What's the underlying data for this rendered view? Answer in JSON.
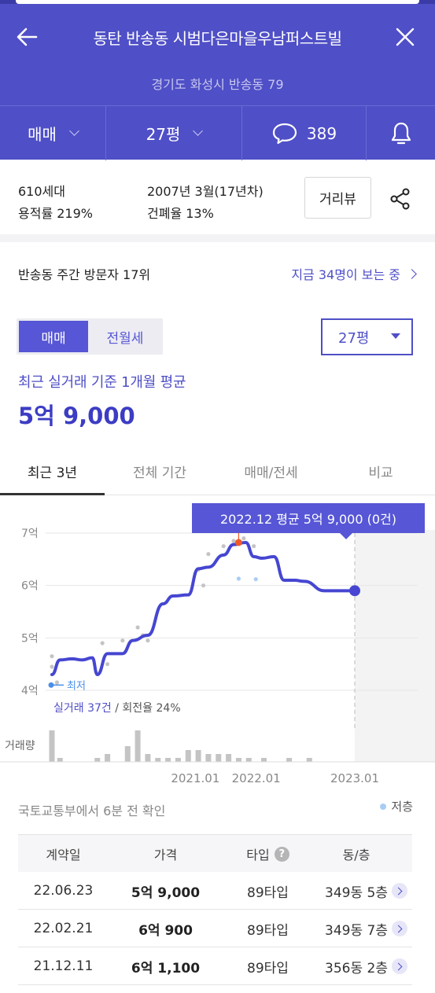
{
  "header": {
    "title": "동탄 반송동 시범다은마을우남퍼스트빌",
    "address": "경기도 화성시 반송동 79",
    "trade_type": "매매",
    "size": "27평",
    "comment_count": "389",
    "icons": [
      "back-arrow-icon",
      "close-icon",
      "chevron-down-icon",
      "speech-bubble-icon",
      "bell-icon"
    ]
  },
  "info": {
    "households": "610세대",
    "floor_area_ratio": "용적률 219%",
    "built": "2007년 3월(17년차)",
    "coverage_ratio": "건폐율 13%",
    "street_view_label": "거리뷰",
    "share_icon": "share-icon"
  },
  "visitors": {
    "rank_text": "반송동 주간 방문자 17위",
    "watching_text": "지금 34명이 보는 중"
  },
  "filter": {
    "segments": [
      "매매",
      "전월세"
    ],
    "selected_segment": "매매",
    "size_select": "27평"
  },
  "summary": {
    "caption": "최근 실거래 기준 1개월 평균",
    "price": "5억 9,000"
  },
  "tabs": [
    "최근 3년",
    "전체 기간",
    "매매/전세",
    "비교"
  ],
  "active_tab": "최근 3년",
  "chart_data": {
    "type": "line",
    "y_ticks": [
      "7억",
      "6억",
      "5억",
      "4억"
    ],
    "ylim": [
      4.0,
      7.0
    ],
    "x_ticks": [
      "2021.01",
      "2022.01",
      "2023.01"
    ],
    "x_tick_values": [
      2021.0,
      2022.0,
      2023.0
    ],
    "tooltip": "2022.12 평균 5억 9,000 (0건)",
    "min_label": "최저",
    "stats_trades": "실거래 37건",
    "stats_turnover": " / 회전율 24%",
    "volume_label": "거래량",
    "avg_series": {
      "x": [
        2020.0,
        2020.08,
        2020.2,
        2020.3,
        2020.4,
        2020.45,
        2020.55,
        2020.7,
        2020.8,
        2020.95,
        2021.1,
        2021.2,
        2021.35,
        2021.45,
        2021.55,
        2021.7,
        2021.8,
        2021.92,
        2022.0,
        2022.08,
        2022.2,
        2022.3,
        2022.4,
        2022.5,
        2022.7,
        2022.8,
        2022.9,
        2023.0
      ],
      "y": [
        4.3,
        4.58,
        4.6,
        4.58,
        4.62,
        4.3,
        4.7,
        4.7,
        4.95,
        5.05,
        5.65,
        5.8,
        5.82,
        6.32,
        6.35,
        6.58,
        6.78,
        6.82,
        6.55,
        6.52,
        6.55,
        6.1,
        6.1,
        6.08,
        5.9,
        5.9,
        5.9,
        5.9
      ]
    },
    "trades_sale": {
      "x": [
        2020.0,
        2020.0,
        2020.05,
        2020.5,
        2020.55,
        2020.7,
        2020.85,
        2020.9,
        2020.95,
        2021.45,
        2021.5,
        2021.55,
        2021.7,
        2021.8,
        2021.9,
        2022.0
      ],
      "y": [
        4.65,
        4.45,
        4.15,
        4.9,
        4.5,
        4.95,
        5.2,
        5.05,
        4.95,
        6.3,
        6.0,
        6.6,
        6.75,
        6.85,
        6.9,
        6.75
      ]
    },
    "trades_low_floor": {
      "x": [
        2021.85,
        2022.02
      ],
      "y": [
        6.13,
        6.12
      ]
    },
    "selected_point": {
      "x": 2021.85,
      "y": 6.82
    },
    "current_point": {
      "x": 2023.0,
      "y": 5.9
    },
    "min_point": {
      "x": 2020.0,
      "y": 4.1
    },
    "volume": {
      "x": [
        2020.0,
        2020.08,
        2020.45,
        2020.55,
        2020.75,
        2020.85,
        2020.95,
        2021.05,
        2021.15,
        2021.25,
        2021.35,
        2021.45,
        2021.55,
        2021.65,
        2021.75,
        2021.85,
        2021.95,
        2022.1,
        2022.35,
        2022.55
      ],
      "values": [
        8,
        1,
        1,
        2,
        4,
        8,
        2,
        1,
        1,
        1,
        3,
        3,
        2,
        2,
        2,
        1,
        1,
        1,
        1,
        1
      ]
    },
    "volume_max": 8,
    "xlim": [
      2020.0,
      2023.0
    ],
    "projection_region_start": 2023.0
  },
  "legend": {
    "low_floor": "저층"
  },
  "source_text": "국토교통부에서 6분 전 확인",
  "table": {
    "headers": [
      "계약일",
      "가격",
      "타입",
      "동/층"
    ],
    "rows": [
      {
        "date": "22.06.23",
        "price": "5억 9,000",
        "type": "89타입",
        "unit": "349동 5층"
      },
      {
        "date": "22.02.21",
        "price": "6억 900",
        "type": "89타입",
        "unit": "349동 7층"
      },
      {
        "date": "21.12.11",
        "price": "6억 1,100",
        "type": "89타입",
        "unit": "356동 2층"
      }
    ]
  },
  "colors": {
    "brand": "#4f4fc7",
    "line": "#4646d2",
    "highlight": "#f05a28",
    "low_floor_dot": "#a8cdf2"
  }
}
